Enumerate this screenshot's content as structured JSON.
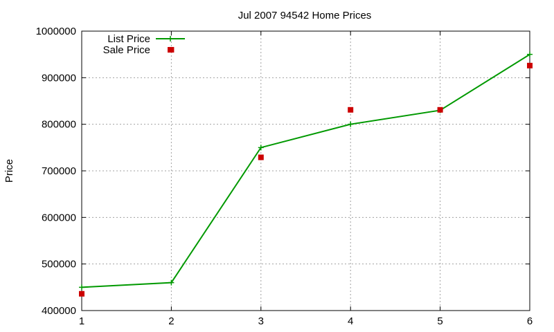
{
  "chart_data": {
    "type": "line",
    "title": "Jul 2007 94542 Home Prices",
    "xlabel": "",
    "ylabel": "Price",
    "x": [
      1,
      2,
      3,
      4,
      5,
      6
    ],
    "xlim": [
      1,
      6
    ],
    "ylim": [
      400000,
      1000000
    ],
    "x_ticks": [
      "1",
      "2",
      "3",
      "4",
      "5",
      "6"
    ],
    "y_ticks": [
      "400000",
      "500000",
      "600000",
      "700000",
      "800000",
      "900000",
      "1000000"
    ],
    "grid": true,
    "legend_position": "top-left",
    "series": [
      {
        "name": "List Price",
        "style": "linespoints",
        "color": "#009900",
        "marker": "plus",
        "values": [
          450000,
          460000,
          750000,
          800000,
          830000,
          950000
        ]
      },
      {
        "name": "Sale Price",
        "style": "points",
        "color": "#cc0000",
        "marker": "square",
        "values": [
          436000,
          960000,
          729000,
          831000,
          831000,
          926000
        ]
      }
    ]
  }
}
